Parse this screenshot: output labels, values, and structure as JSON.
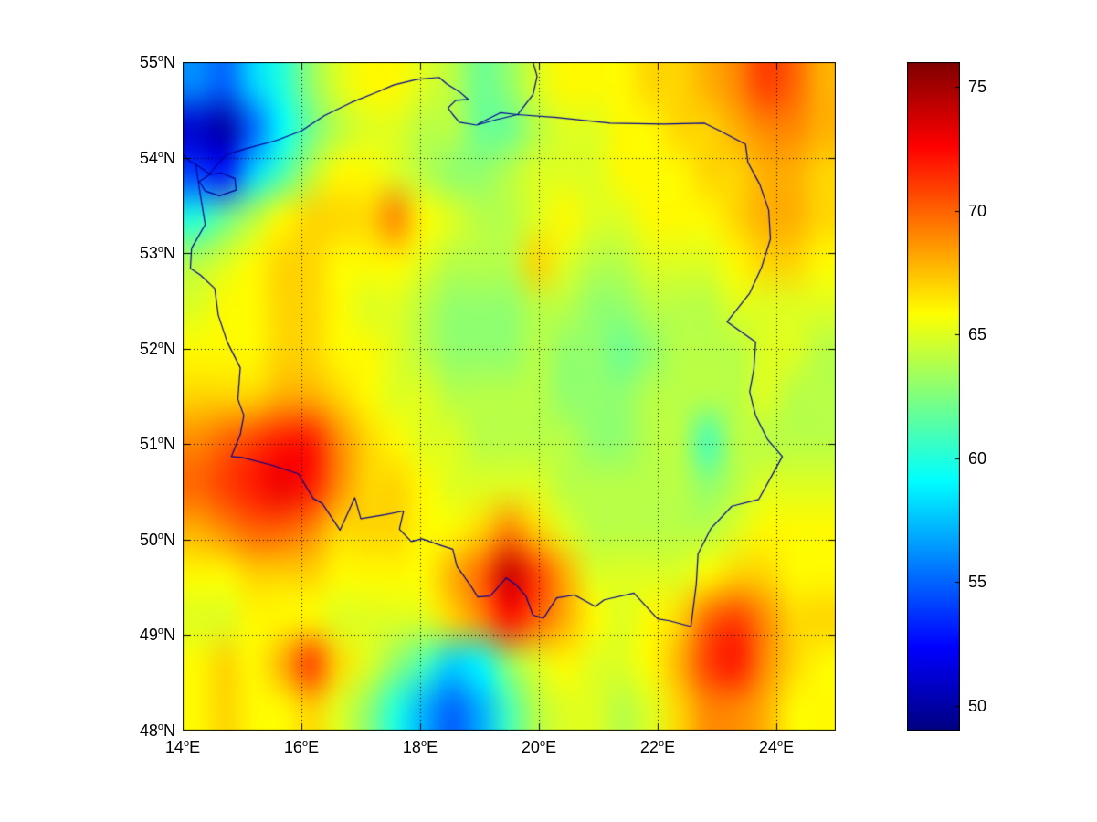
{
  "figure": {
    "background": "#ffffff",
    "colors": {
      "axis": "#000000",
      "grid_dots": "#000000",
      "country_line": "#000099",
      "text": "#000000"
    },
    "axes": {
      "degree_symbol": "o",
      "x_ticks": [
        {
          "value": 14,
          "text": "14",
          "hem": "E"
        },
        {
          "value": 16,
          "text": "16",
          "hem": "E"
        },
        {
          "value": 18,
          "text": "18",
          "hem": "E"
        },
        {
          "value": 20,
          "text": "20",
          "hem": "E"
        },
        {
          "value": 22,
          "text": "22",
          "hem": "E"
        },
        {
          "value": 24,
          "text": "24",
          "hem": "E"
        }
      ],
      "y_ticks": [
        {
          "value": 55,
          "text": "55",
          "hem": "N"
        },
        {
          "value": 54,
          "text": "54",
          "hem": "N"
        },
        {
          "value": 53,
          "text": "53",
          "hem": "N"
        },
        {
          "value": 52,
          "text": "52",
          "hem": "N"
        },
        {
          "value": 51,
          "text": "51",
          "hem": "N"
        },
        {
          "value": 50,
          "text": "50",
          "hem": "N"
        },
        {
          "value": 49,
          "text": "49",
          "hem": "N"
        },
        {
          "value": 48,
          "text": "48",
          "hem": "N"
        }
      ]
    },
    "colorbar": {
      "min": 49,
      "max": 76,
      "tick_values": [
        75,
        70,
        65,
        60,
        55,
        50
      ],
      "tick_labels": [
        "75",
        "70",
        "65",
        "60",
        "55",
        "50"
      ]
    }
  },
  "chart_data": {
    "type": "heatmap",
    "title": "",
    "colormap": "jet",
    "value_range": [
      49,
      76
    ],
    "x_range": [
      14,
      25
    ],
    "y_range": [
      48,
      55
    ],
    "x": [
      14,
      14.5,
      15,
      15.5,
      16,
      16.5,
      17,
      17.5,
      18,
      18.5,
      19,
      19.5,
      20,
      20.5,
      21,
      21.5,
      22,
      22.5,
      23,
      23.5,
      24,
      24.5,
      25
    ],
    "y": [
      55,
      54.5,
      54,
      53.5,
      53,
      52.5,
      52,
      51.5,
      51,
      50.5,
      50,
      49.5,
      49,
      48.5,
      48
    ],
    "grid": [
      [
        56,
        55,
        58,
        60,
        63,
        65,
        66,
        66,
        65,
        64,
        62,
        63,
        65,
        66,
        66,
        66,
        67,
        67,
        68,
        69,
        71,
        70,
        68
      ],
      [
        51,
        50,
        55,
        59,
        62,
        64,
        65,
        65,
        64,
        64,
        62,
        62,
        64,
        65,
        65,
        66,
        66,
        67,
        67,
        68,
        69,
        69,
        68
      ],
      [
        54,
        53,
        58,
        61,
        64,
        66,
        66,
        65,
        64,
        63,
        63,
        64,
        65,
        65,
        65,
        66,
        66,
        66,
        67,
        67,
        68,
        68,
        67
      ],
      [
        60,
        62,
        64,
        66,
        67,
        67,
        67,
        69,
        66,
        65,
        64,
        64,
        65,
        66,
        65,
        65,
        66,
        66,
        66,
        67,
        68,
        68,
        67
      ],
      [
        64,
        65,
        66,
        67,
        67,
        66,
        66,
        66,
        65,
        64,
        64,
        64,
        67,
        65,
        64,
        64,
        65,
        65,
        65,
        66,
        67,
        67,
        66
      ],
      [
        65,
        66,
        66,
        67,
        67,
        66,
        65,
        65,
        64,
        63,
        63,
        63,
        64,
        64,
        63,
        63,
        64,
        64,
        64,
        65,
        65,
        65,
        65
      ],
      [
        66,
        66,
        66,
        67,
        67,
        66,
        66,
        65,
        64,
        63,
        63,
        63,
        64,
        63,
        63,
        62,
        63,
        64,
        64,
        64,
        65,
        65,
        64
      ],
      [
        67,
        67,
        67,
        68,
        68,
        67,
        66,
        65,
        65,
        64,
        64,
        64,
        64,
        63,
        63,
        63,
        64,
        64,
        64,
        64,
        65,
        64,
        64
      ],
      [
        69,
        70,
        71,
        72,
        72,
        69,
        67,
        66,
        65,
        65,
        64,
        64,
        64,
        64,
        63,
        63,
        64,
        64,
        61,
        64,
        64,
        64,
        64
      ],
      [
        70,
        71,
        72,
        73,
        72,
        69,
        67,
        67,
        66,
        65,
        65,
        65,
        65,
        64,
        64,
        64,
        64,
        64,
        63,
        64,
        65,
        65,
        65
      ],
      [
        68,
        69,
        70,
        70,
        69,
        67,
        67,
        67,
        66,
        66,
        67,
        69,
        67,
        65,
        64,
        64,
        64,
        64,
        64,
        65,
        66,
        66,
        66
      ],
      [
        66,
        66,
        67,
        67,
        67,
        66,
        66,
        66,
        66,
        68,
        70,
        74,
        71,
        68,
        65,
        65,
        65,
        65,
        66,
        67,
        67,
        66,
        66
      ],
      [
        65,
        65,
        66,
        66,
        66,
        65,
        65,
        65,
        65,
        67,
        69,
        72,
        70,
        68,
        66,
        65,
        66,
        67,
        70,
        71,
        69,
        67,
        67
      ],
      [
        66,
        67,
        66,
        68,
        71,
        67,
        65,
        63,
        61,
        58,
        59,
        63,
        65,
        66,
        65,
        65,
        66,
        68,
        71,
        72,
        69,
        67,
        66
      ],
      [
        66,
        67,
        66,
        66,
        67,
        65,
        63,
        60,
        57,
        55,
        57,
        61,
        64,
        65,
        65,
        64,
        65,
        67,
        69,
        69,
        68,
        66,
        66
      ]
    ],
    "overlay": {
      "poland_border": [
        [
          14.22,
          53.93
        ],
        [
          14.45,
          53.83
        ],
        [
          14.73,
          54.03
        ],
        [
          15.1,
          54.1
        ],
        [
          15.58,
          54.18
        ],
        [
          16.0,
          54.28
        ],
        [
          16.39,
          54.44
        ],
        [
          16.85,
          54.58
        ],
        [
          17.25,
          54.68
        ],
        [
          17.55,
          54.76
        ],
        [
          17.95,
          54.82
        ],
        [
          18.32,
          54.84
        ],
        [
          18.45,
          54.77
        ],
        [
          18.66,
          54.69
        ],
        [
          18.81,
          54.61
        ],
        [
          18.6,
          54.6
        ],
        [
          18.47,
          54.52
        ],
        [
          18.55,
          54.45
        ],
        [
          18.66,
          54.37
        ],
        [
          18.95,
          54.34
        ],
        [
          19.3,
          54.4
        ],
        [
          19.64,
          54.45
        ],
        [
          20.3,
          54.42
        ],
        [
          21.2,
          54.36
        ],
        [
          22.1,
          54.35
        ],
        [
          22.79,
          54.36
        ],
        [
          23.05,
          54.28
        ],
        [
          23.48,
          54.14
        ],
        [
          23.52,
          53.95
        ],
        [
          23.72,
          53.72
        ],
        [
          23.87,
          53.45
        ],
        [
          23.9,
          53.15
        ],
        [
          23.75,
          52.85
        ],
        [
          23.55,
          52.58
        ],
        [
          23.17,
          52.28
        ],
        [
          23.4,
          52.18
        ],
        [
          23.65,
          52.07
        ],
        [
          23.62,
          51.78
        ],
        [
          23.55,
          51.55
        ],
        [
          23.65,
          51.3
        ],
        [
          23.85,
          51.05
        ],
        [
          24.1,
          50.87
        ],
        [
          23.95,
          50.7
        ],
        [
          23.7,
          50.42
        ],
        [
          23.25,
          50.35
        ],
        [
          22.9,
          50.12
        ],
        [
          22.68,
          49.85
        ],
        [
          22.65,
          49.53
        ],
        [
          22.56,
          49.09
        ],
        [
          22.2,
          49.15
        ],
        [
          22.0,
          49.17
        ],
        [
          21.6,
          49.44
        ],
        [
          21.1,
          49.37
        ],
        [
          20.95,
          49.3
        ],
        [
          20.6,
          49.42
        ],
        [
          20.3,
          49.39
        ],
        [
          20.08,
          49.18
        ],
        [
          19.9,
          49.21
        ],
        [
          19.78,
          49.41
        ],
        [
          19.63,
          49.52
        ],
        [
          19.45,
          49.6
        ],
        [
          19.18,
          49.41
        ],
        [
          18.97,
          49.4
        ],
        [
          18.85,
          49.52
        ],
        [
          18.62,
          49.72
        ],
        [
          18.55,
          49.9
        ],
        [
          18.3,
          49.95
        ],
        [
          18.03,
          50.01
        ],
        [
          17.85,
          49.98
        ],
        [
          17.65,
          50.11
        ],
        [
          17.72,
          50.3
        ],
        [
          17.4,
          50.26
        ],
        [
          17.0,
          50.22
        ],
        [
          16.9,
          50.44
        ],
        [
          16.65,
          50.1
        ],
        [
          16.35,
          50.38
        ],
        [
          16.2,
          50.43
        ],
        [
          15.95,
          50.69
        ],
        [
          15.5,
          50.78
        ],
        [
          15.0,
          50.86
        ],
        [
          14.82,
          50.87
        ],
        [
          14.97,
          51.1
        ],
        [
          15.03,
          51.3
        ],
        [
          14.93,
          51.47
        ],
        [
          14.97,
          51.8
        ],
        [
          14.75,
          52.07
        ],
        [
          14.6,
          52.35
        ],
        [
          14.54,
          52.63
        ],
        [
          14.3,
          52.77
        ],
        [
          14.13,
          52.84
        ],
        [
          14.15,
          53.05
        ],
        [
          14.38,
          53.3
        ],
        [
          14.3,
          53.6
        ],
        [
          14.22,
          53.93
        ]
      ],
      "coast_lines": [
        [
          [
            14.0,
            54.04
          ],
          [
            14.12,
            53.96
          ],
          [
            14.22,
            53.93
          ]
        ],
        [
          [
            14.28,
            53.75
          ],
          [
            14.45,
            53.82
          ],
          [
            14.65,
            53.84
          ],
          [
            14.88,
            53.78
          ],
          [
            14.9,
            53.66
          ],
          [
            14.62,
            53.6
          ],
          [
            14.38,
            53.65
          ],
          [
            14.28,
            53.75
          ]
        ],
        [
          [
            18.97,
            54.35
          ],
          [
            19.35,
            54.47
          ],
          [
            19.64,
            54.45
          ],
          [
            19.9,
            54.66
          ],
          [
            19.97,
            54.85
          ],
          [
            19.9,
            55.0
          ]
        ]
      ]
    }
  }
}
